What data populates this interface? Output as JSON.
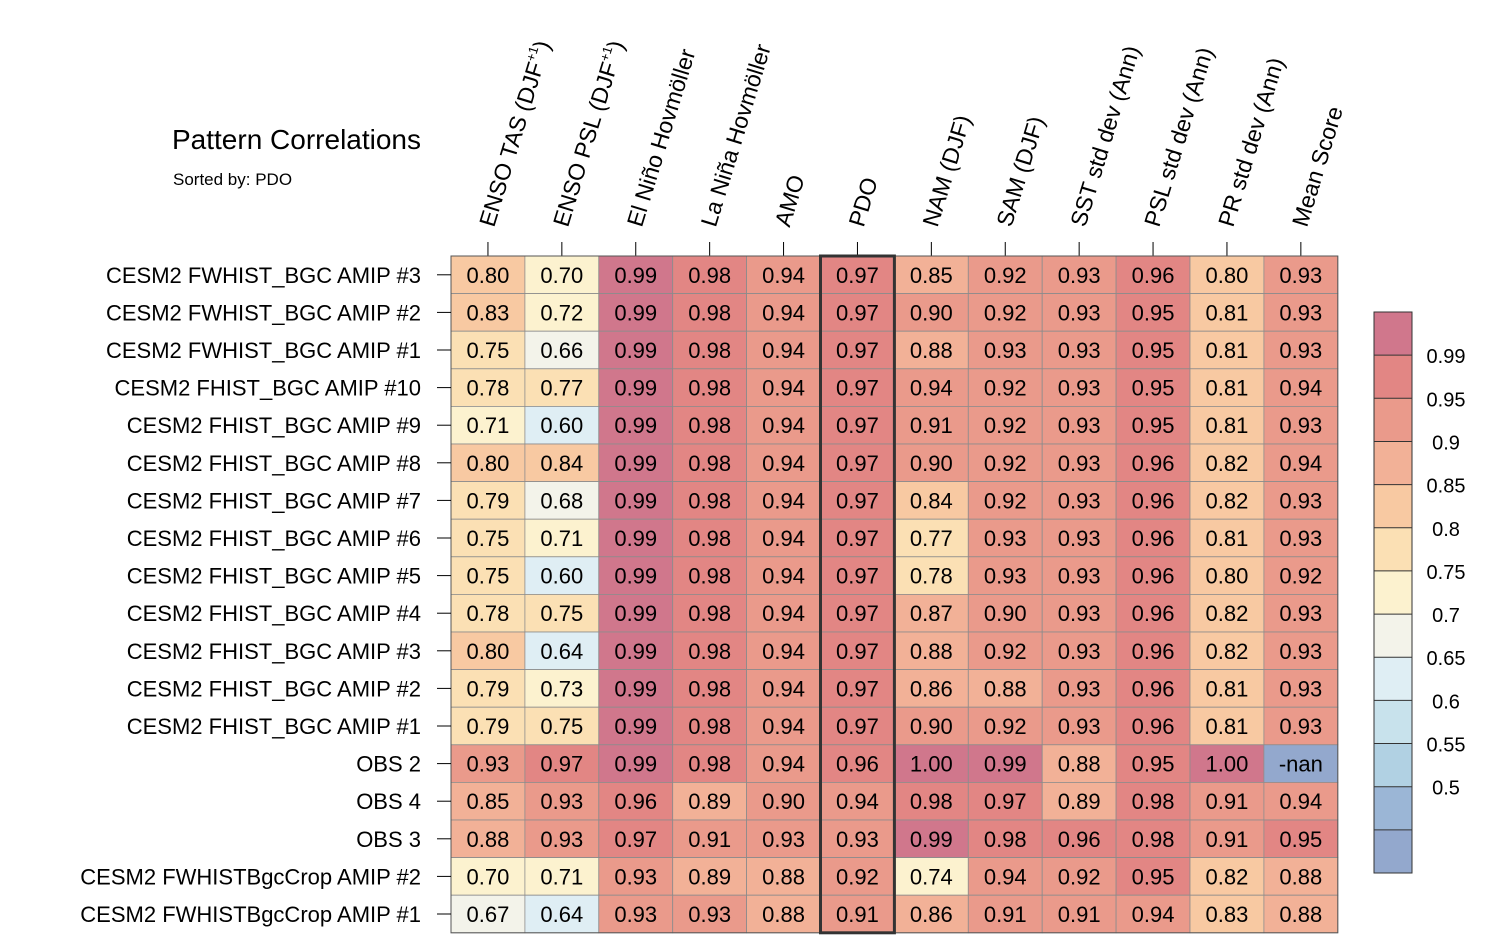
{
  "chart_data": {
    "type": "heatmap",
    "title": "Pattern Correlations",
    "subtitle": "Sorted by: PDO",
    "highlight_column": "PDO",
    "columns": [
      {
        "label": "ENSO TAS (DJF",
        "sup": "+1",
        "suffix": ")"
      },
      {
        "label": "ENSO PSL (DJF",
        "sup": "+1",
        "suffix": ")"
      },
      {
        "label": "El Niño Hovmöller"
      },
      {
        "label": "La Niña Hovmöller"
      },
      {
        "label": "AMO"
      },
      {
        "label": "PDO"
      },
      {
        "label": "NAM (DJF)"
      },
      {
        "label": "SAM (DJF)"
      },
      {
        "label": "SST std dev (Ann)"
      },
      {
        "label": "PSL std dev (Ann)"
      },
      {
        "label": "PR std dev (Ann)"
      },
      {
        "label": "Mean Score"
      }
    ],
    "rows": [
      {
        "name": "CESM2 FWHIST_BGC AMIP #3",
        "values": [
          "0.80",
          "0.70",
          "0.99",
          "0.98",
          "0.94",
          "0.97",
          "0.85",
          "0.92",
          "0.93",
          "0.96",
          "0.80",
          "0.93"
        ]
      },
      {
        "name": "CESM2 FWHIST_BGC AMIP #2",
        "values": [
          "0.83",
          "0.72",
          "0.99",
          "0.98",
          "0.94",
          "0.97",
          "0.90",
          "0.92",
          "0.93",
          "0.95",
          "0.81",
          "0.93"
        ]
      },
      {
        "name": "CESM2 FWHIST_BGC AMIP #1",
        "values": [
          "0.75",
          "0.66",
          "0.99",
          "0.98",
          "0.94",
          "0.97",
          "0.88",
          "0.93",
          "0.93",
          "0.95",
          "0.81",
          "0.93"
        ]
      },
      {
        "name": "CESM2 FHIST_BGC AMIP #10",
        "values": [
          "0.78",
          "0.77",
          "0.99",
          "0.98",
          "0.94",
          "0.97",
          "0.94",
          "0.92",
          "0.93",
          "0.95",
          "0.81",
          "0.94"
        ]
      },
      {
        "name": "CESM2 FHIST_BGC AMIP #9",
        "values": [
          "0.71",
          "0.60",
          "0.99",
          "0.98",
          "0.94",
          "0.97",
          "0.91",
          "0.92",
          "0.93",
          "0.95",
          "0.81",
          "0.93"
        ]
      },
      {
        "name": "CESM2 FHIST_BGC AMIP #8",
        "values": [
          "0.80",
          "0.84",
          "0.99",
          "0.98",
          "0.94",
          "0.97",
          "0.90",
          "0.92",
          "0.93",
          "0.96",
          "0.82",
          "0.94"
        ]
      },
      {
        "name": "CESM2 FHIST_BGC AMIP #7",
        "values": [
          "0.79",
          "0.68",
          "0.99",
          "0.98",
          "0.94",
          "0.97",
          "0.84",
          "0.92",
          "0.93",
          "0.96",
          "0.82",
          "0.93"
        ]
      },
      {
        "name": "CESM2 FHIST_BGC AMIP #6",
        "values": [
          "0.75",
          "0.71",
          "0.99",
          "0.98",
          "0.94",
          "0.97",
          "0.77",
          "0.93",
          "0.93",
          "0.96",
          "0.81",
          "0.93"
        ]
      },
      {
        "name": "CESM2 FHIST_BGC AMIP #5",
        "values": [
          "0.75",
          "0.60",
          "0.99",
          "0.98",
          "0.94",
          "0.97",
          "0.78",
          "0.93",
          "0.93",
          "0.96",
          "0.80",
          "0.92"
        ]
      },
      {
        "name": "CESM2 FHIST_BGC AMIP #4",
        "values": [
          "0.78",
          "0.75",
          "0.99",
          "0.98",
          "0.94",
          "0.97",
          "0.87",
          "0.90",
          "0.93",
          "0.96",
          "0.82",
          "0.93"
        ]
      },
      {
        "name": "CESM2 FHIST_BGC AMIP #3",
        "values": [
          "0.80",
          "0.64",
          "0.99",
          "0.98",
          "0.94",
          "0.97",
          "0.88",
          "0.92",
          "0.93",
          "0.96",
          "0.82",
          "0.93"
        ]
      },
      {
        "name": "CESM2 FHIST_BGC AMIP #2",
        "values": [
          "0.79",
          "0.73",
          "0.99",
          "0.98",
          "0.94",
          "0.97",
          "0.86",
          "0.88",
          "0.93",
          "0.96",
          "0.81",
          "0.93"
        ]
      },
      {
        "name": "CESM2 FHIST_BGC AMIP #1",
        "values": [
          "0.79",
          "0.75",
          "0.99",
          "0.98",
          "0.94",
          "0.97",
          "0.90",
          "0.92",
          "0.93",
          "0.96",
          "0.81",
          "0.93"
        ]
      },
      {
        "name": "OBS 2",
        "values": [
          "0.93",
          "0.97",
          "0.99",
          "0.98",
          "0.94",
          "0.96",
          "1.00",
          "0.99",
          "0.88",
          "0.95",
          "1.00",
          "-nan"
        ]
      },
      {
        "name": "OBS 4",
        "values": [
          "0.85",
          "0.93",
          "0.96",
          "0.89",
          "0.90",
          "0.94",
          "0.98",
          "0.97",
          "0.89",
          "0.98",
          "0.91",
          "0.94"
        ]
      },
      {
        "name": "OBS 3",
        "values": [
          "0.88",
          "0.93",
          "0.97",
          "0.91",
          "0.93",
          "0.93",
          "0.99",
          "0.98",
          "0.96",
          "0.98",
          "0.91",
          "0.95"
        ]
      },
      {
        "name": "CESM2 FWHISTBgcCrop AMIP #2",
        "values": [
          "0.70",
          "0.71",
          "0.93",
          "0.89",
          "0.88",
          "0.92",
          "0.74",
          "0.94",
          "0.92",
          "0.95",
          "0.82",
          "0.88"
        ]
      },
      {
        "name": "CESM2 FWHISTBgcCrop AMIP #1",
        "values": [
          "0.67",
          "0.64",
          "0.93",
          "0.93",
          "0.88",
          "0.91",
          "0.86",
          "0.91",
          "0.91",
          "0.94",
          "0.83",
          "0.88"
        ]
      }
    ],
    "colorbar": {
      "labels": [
        "0.99",
        "0.95",
        "0.9",
        "0.85",
        "0.8",
        "0.75",
        "0.7",
        "0.65",
        "0.6",
        "0.55",
        "0.5"
      ],
      "colors": [
        "#d0778c",
        "#e28684",
        "#ea9a8b",
        "#f2b197",
        "#f8c9a2",
        "#fbe0b4",
        "#fcf2cf",
        "#f3f3ea",
        "#dfeef4",
        "#c8e2ec",
        "#b1d1e3",
        "#9bb6d6",
        "#93a8cd"
      ]
    },
    "nan_color": "#93a8cd"
  }
}
